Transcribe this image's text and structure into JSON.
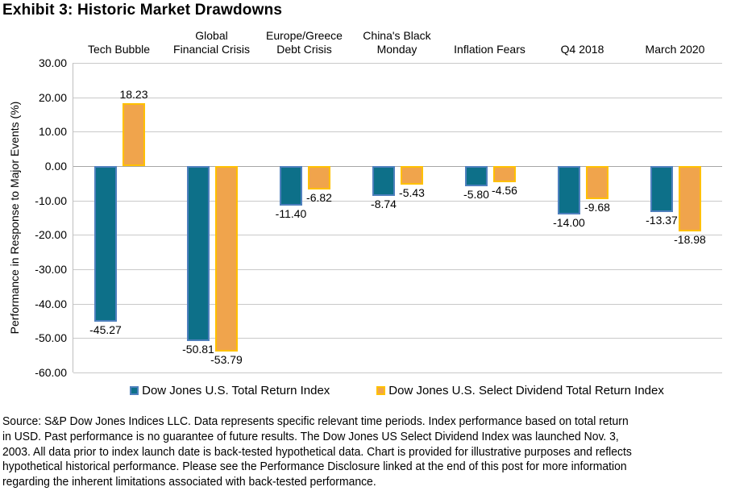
{
  "title": "Exhibit 3: Historic Market Drawdowns",
  "chart_data": {
    "type": "bar",
    "categories": [
      "Tech Bubble",
      "Global\nFinancial Crisis",
      "Europe/Greece\nDebt Crisis",
      "China's Black\nMonday",
      "Inflation Fears",
      "Q4 2018",
      "March 2020"
    ],
    "series": [
      {
        "name": "Dow Jones U.S. Total Return Index",
        "values": [
          -45.27,
          -50.81,
          -11.4,
          -8.74,
          -5.8,
          -14.0,
          -13.37
        ],
        "fill": "#0D7089",
        "border": "#4E80BD"
      },
      {
        "name": "Dow Jones U.S. Select Dividend Total Return Index",
        "values": [
          18.23,
          -53.79,
          -6.82,
          -5.43,
          -4.56,
          -9.68,
          -18.98
        ],
        "fill": "#F0A44C",
        "border": "#FFC000"
      }
    ],
    "ylabel": "Performance in Response to Major Events (%)",
    "ylim": [
      -60,
      30
    ],
    "ytick_step": 10,
    "ytick_labels": [
      "30.00",
      "20.00",
      "10.00",
      "0.00",
      "-10.00",
      "-20.00",
      "-30.00",
      "-40.00",
      "-50.00",
      "-60.00"
    ],
    "grid": true,
    "legend_position": "bottom",
    "data_label_format": "0.00 outside end"
  },
  "colors": {
    "gridline": "#C9C9C9",
    "zero_line": "#A6A6A6",
    "axis_line": "#BFBFBF",
    "text": "#000000",
    "background": "#FFFFFF"
  },
  "footer": {
    "lines": [
      "Source: S&P Dow Jones Indices LLC. Data represents specific relevant time periods. Index performance based on total return",
      "in USD. Past performance is no guarantee of future results. The Dow Jones US Select Dividend Index was launched Nov. 3,",
      "2003. All data prior to index launch date is back-tested hypothetical data. Chart is provided for illustrative purposes and reflects",
      "hypothetical historical performance. Please see the Performance Disclosure linked at the end of this post for more information",
      "regarding the inherent limitations associated with back-tested performance."
    ]
  }
}
